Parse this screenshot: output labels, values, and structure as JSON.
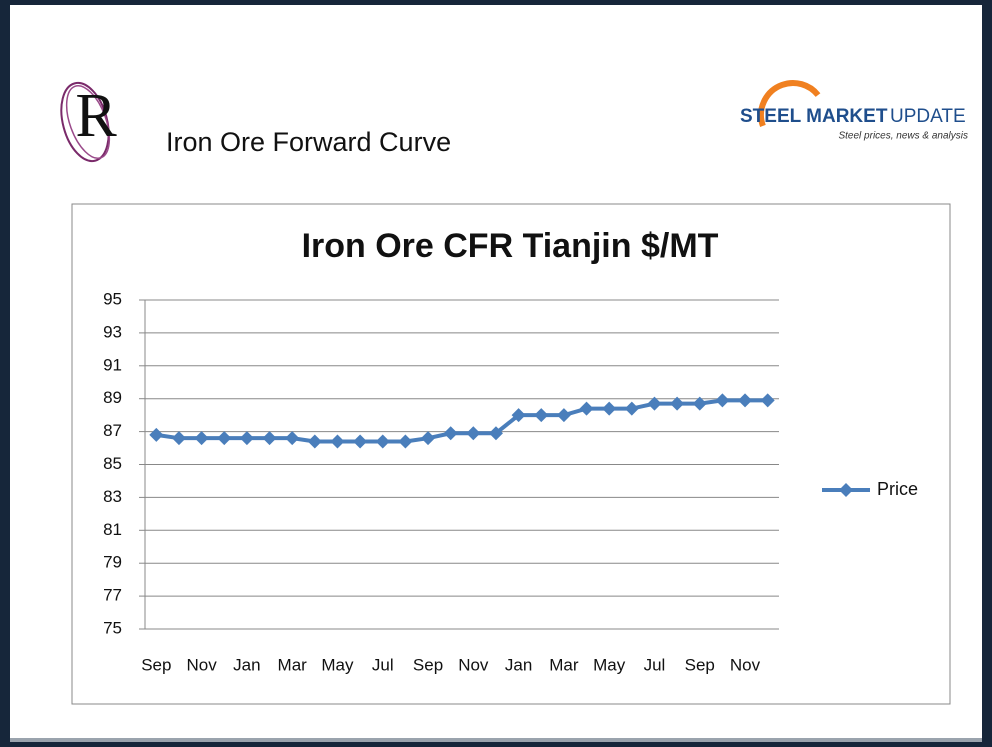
{
  "header": {
    "title": "Iron Ore Forward Curve",
    "logo_letter": "R",
    "brand_bold": "STEEL MARKET",
    "brand_light": "UPDATE",
    "brand_tagline": "Steel prices, news & analysis"
  },
  "chart_data": {
    "type": "line",
    "title": "Iron Ore CFR Tianjin $/MT",
    "categories": [
      "Sep",
      null,
      "Nov",
      null,
      "Jan",
      null,
      "Mar",
      null,
      "May",
      null,
      "Jul",
      null,
      "Sep",
      null,
      "Nov",
      null,
      "Jan",
      null,
      "Mar",
      null,
      "May",
      null,
      "Jul",
      null,
      "Sep",
      null,
      "Nov",
      null
    ],
    "series": [
      {
        "name": "Price",
        "color": "#4a7ebb",
        "values": [
          86.8,
          86.6,
          86.6,
          86.6,
          86.6,
          86.6,
          86.6,
          86.4,
          86.4,
          86.4,
          86.4,
          86.4,
          86.6,
          86.9,
          86.9,
          86.9,
          88.0,
          88.0,
          88.0,
          88.4,
          88.4,
          88.4,
          88.7,
          88.7,
          88.7,
          88.9,
          88.9,
          88.9
        ]
      }
    ],
    "ylim": [
      75,
      95
    ],
    "yticks": [
      75,
      77,
      79,
      81,
      83,
      85,
      87,
      89,
      91,
      93,
      95
    ],
    "grid": true,
    "legend": "right"
  }
}
